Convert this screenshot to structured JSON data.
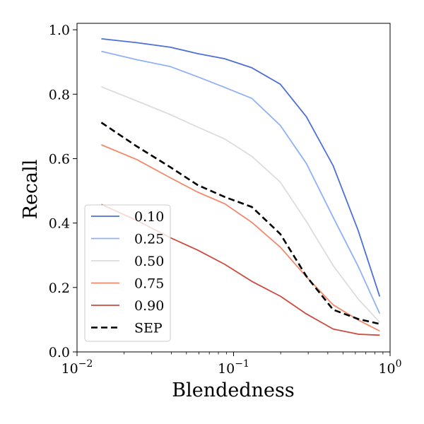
{
  "chart_data": {
    "type": "line",
    "title": "",
    "xlabel": "Blendedness",
    "ylabel": "Recall",
    "xscale": "log",
    "xlim": [
      0.01,
      1
    ],
    "ylim": [
      0,
      1.02
    ],
    "x_tick_labels": [
      {
        "base": "10",
        "exp": "−2",
        "value": 0.01
      },
      {
        "base": "10",
        "exp": "−1",
        "value": 0.1
      },
      {
        "base": "10",
        "exp": "0",
        "value": 1
      }
    ],
    "y_tick_labels": [
      "0.0",
      "0.2",
      "0.4",
      "0.6",
      "0.8",
      "1.0"
    ],
    "y_ticks": [
      0,
      0.2,
      0.4,
      0.6,
      0.8,
      1.0
    ],
    "grid": false,
    "legend_position": "lower-left",
    "x": [
      0.0143,
      0.0241,
      0.0393,
      0.059,
      0.0878,
      0.1309,
      0.199,
      0.2919,
      0.4328,
      0.6264,
      0.8583
    ],
    "series": [
      {
        "name": "0.10",
        "color": "#4e6fd8",
        "dash": "solid",
        "values": [
          0.972,
          0.96,
          0.946,
          0.926,
          0.91,
          0.882,
          0.831,
          0.73,
          0.578,
          0.376,
          0.172
        ]
      },
      {
        "name": "0.25",
        "color": "#8fb1f5",
        "dash": "solid",
        "values": [
          0.933,
          0.907,
          0.886,
          0.854,
          0.821,
          0.787,
          0.703,
          0.585,
          0.418,
          0.265,
          0.119
        ]
      },
      {
        "name": "0.50",
        "color": "#dcdcdc",
        "dash": "solid",
        "values": [
          0.823,
          0.779,
          0.737,
          0.698,
          0.661,
          0.607,
          0.527,
          0.405,
          0.268,
          0.164,
          0.092
        ]
      },
      {
        "name": "0.75",
        "color": "#f2896a",
        "dash": "solid",
        "values": [
          0.643,
          0.597,
          0.541,
          0.496,
          0.46,
          0.402,
          0.325,
          0.233,
          0.146,
          0.099,
          0.065
        ]
      },
      {
        "name": "0.90",
        "color": "#cc4a3e",
        "dash": "solid",
        "values": [
          0.458,
          0.408,
          0.355,
          0.316,
          0.272,
          0.219,
          0.173,
          0.118,
          0.071,
          0.055,
          0.052
        ]
      },
      {
        "name": "SEP",
        "color": "#000000",
        "dash": "dashed",
        "values": [
          0.712,
          0.638,
          0.574,
          0.518,
          0.481,
          0.45,
          0.366,
          0.235,
          0.131,
          0.102,
          0.087
        ]
      }
    ]
  }
}
